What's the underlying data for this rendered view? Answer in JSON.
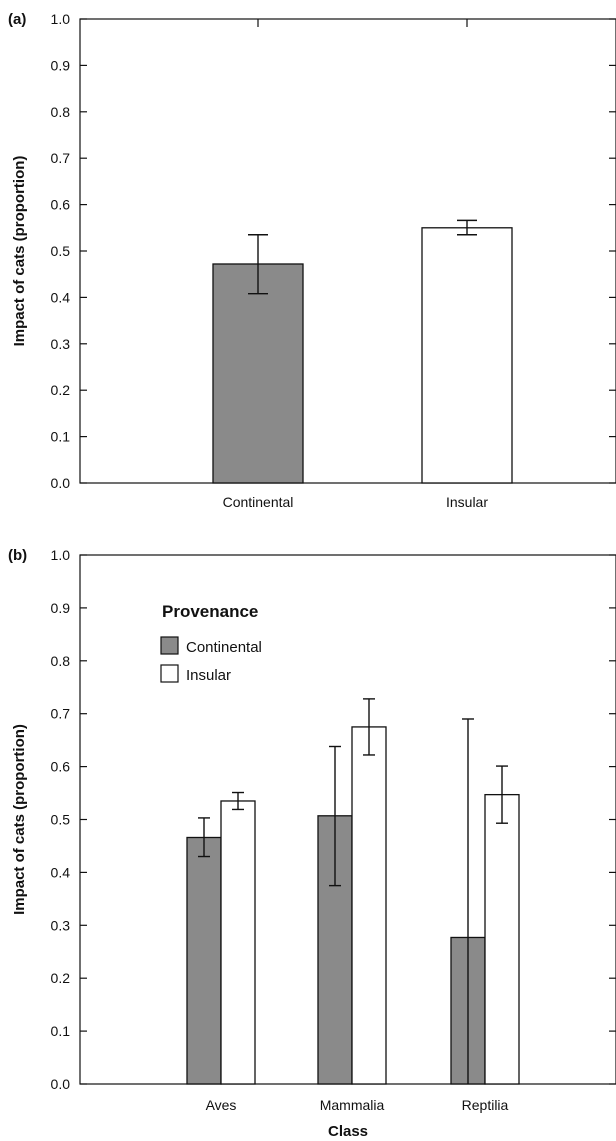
{
  "colors": {
    "continental": "#8a8a8a",
    "insular": "#ffffff",
    "stroke": "#111111"
  },
  "chart_data": [
    {
      "type": "bar",
      "panel_label": "(a)",
      "ylabel": "Impact of cats (proportion)",
      "xlabel": "",
      "ylim": [
        0,
        1
      ],
      "yticks": [
        "0.0",
        "0.1",
        "0.2",
        "0.3",
        "0.4",
        "0.5",
        "0.6",
        "0.7",
        "0.8",
        "0.9",
        "1.0"
      ],
      "categories": [
        "Continental",
        "Insular"
      ],
      "values": [
        0.472,
        0.55
      ],
      "error_low": [
        0.408,
        0.535
      ],
      "error_high": [
        0.535,
        0.566
      ],
      "bar_colors": [
        "continental",
        "insular"
      ]
    },
    {
      "type": "bar",
      "panel_label": "(b)",
      "ylabel": "Impact of cats (proportion)",
      "xlabel": "Class",
      "ylim": [
        0,
        1
      ],
      "yticks": [
        "0.0",
        "0.1",
        "0.2",
        "0.3",
        "0.4",
        "0.5",
        "0.6",
        "0.7",
        "0.8",
        "0.9",
        "1.0"
      ],
      "categories": [
        "Aves",
        "Mammalia",
        "Reptilia"
      ],
      "legend": {
        "title": "Provenance",
        "position": "top-left"
      },
      "series": [
        {
          "name": "Continental",
          "color": "continental",
          "values": [
            0.466,
            0.507,
            0.277
          ],
          "error_low": [
            0.43,
            0.375,
            0.0
          ],
          "error_high": [
            0.503,
            0.638,
            0.69
          ]
        },
        {
          "name": "Insular",
          "color": "insular",
          "values": [
            0.535,
            0.675,
            0.547
          ],
          "error_low": [
            0.519,
            0.622,
            0.493
          ],
          "error_high": [
            0.551,
            0.728,
            0.601
          ]
        }
      ]
    }
  ]
}
